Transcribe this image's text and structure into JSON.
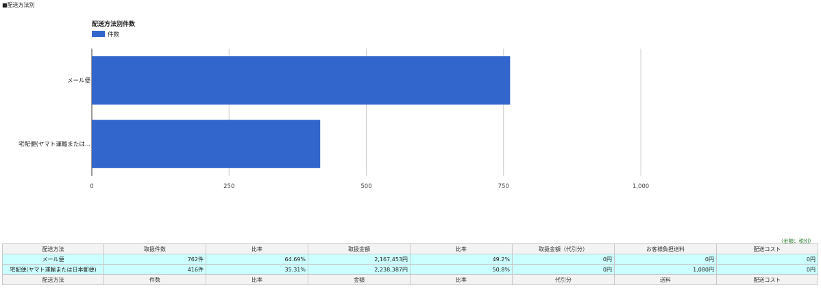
{
  "section_label": "■配送方法別",
  "chart_data": {
    "type": "bar",
    "orientation": "horizontal",
    "title": "配送方法別件数",
    "legend": "top-left",
    "grid": true,
    "categories": [
      "メール便",
      "宅配便(ヤマト運輸または..."
    ],
    "series": [
      {
        "name": "件数",
        "values": [
          762,
          416
        ],
        "color": "#3366cc"
      }
    ],
    "xlim": [
      0,
      1000
    ],
    "xticks": [
      "0",
      "250",
      "500",
      "750",
      "1,000"
    ]
  },
  "table": {
    "note": "（金額：税別）",
    "header": [
      "配送方法",
      "取扱件数",
      "比率",
      "取扱金額",
      "比率",
      "取扱金額（代引分）",
      "お客様負担送料",
      "配送コスト"
    ],
    "rows": [
      [
        "メール便",
        "762件",
        "64.69%",
        "2,167,453円",
        "49.2%",
        "0円",
        "0円",
        "0円"
      ],
      [
        "宅配便(ヤマト運輸または日本郵便)",
        "416件",
        "35.31%",
        "2,238,387円",
        "50.8%",
        "0円",
        "1,080円",
        "0円"
      ]
    ],
    "footer": [
      "配送方法",
      "件数",
      "比率",
      "金額",
      "比率",
      "代引分",
      "送料",
      "配送コスト"
    ]
  }
}
